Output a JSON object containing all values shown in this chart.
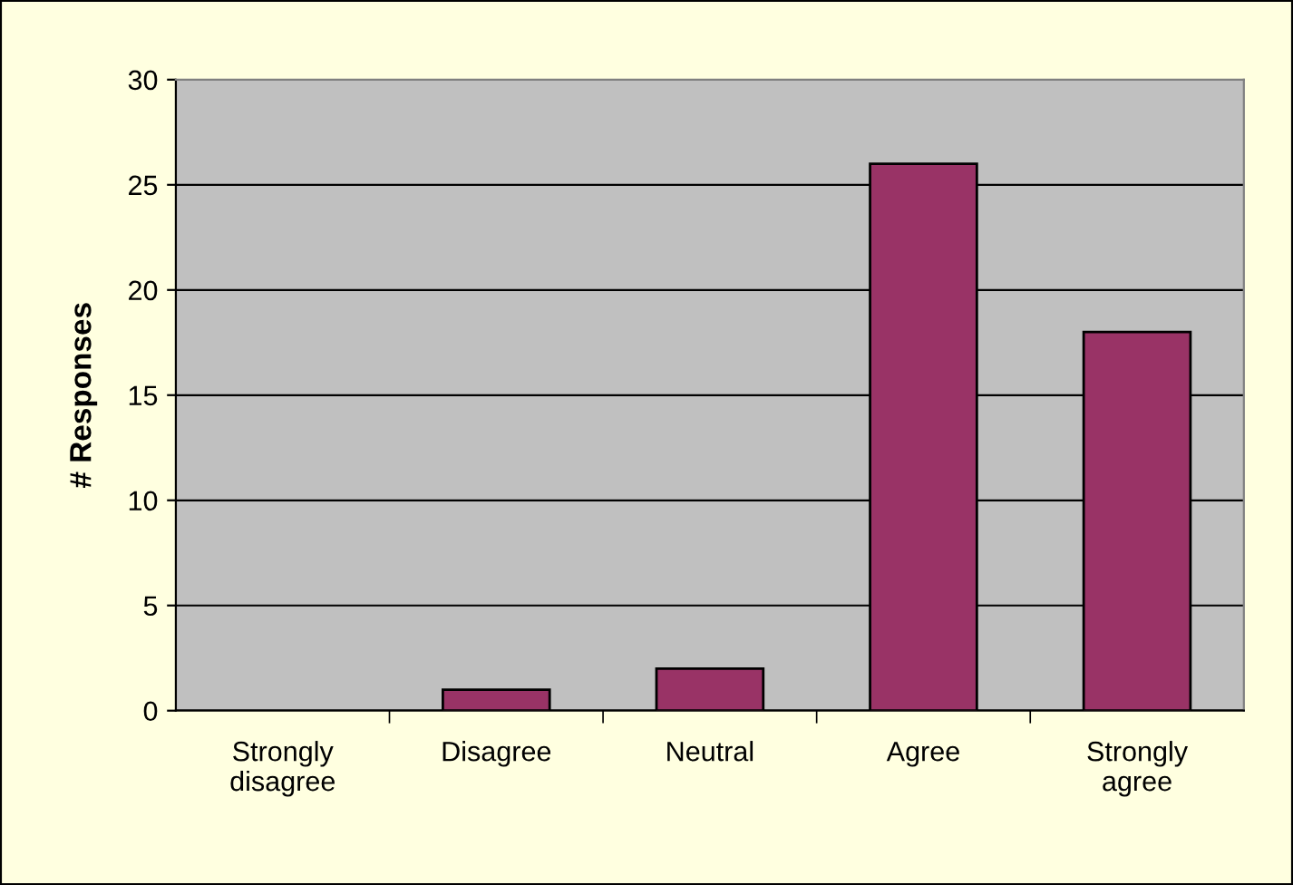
{
  "chart_data": {
    "type": "bar",
    "ylabel": "# Responses",
    "categories": [
      "Strongly\ndisagree",
      "Disagree",
      "Neutral",
      "Agree",
      "Strongly\nagree"
    ],
    "values": [
      0,
      1,
      2,
      26,
      18
    ],
    "color": "#993366",
    "ylim": [
      0,
      30
    ],
    "yticks": [
      0,
      5,
      10,
      15,
      20,
      25,
      30
    ],
    "grid": "y"
  }
}
